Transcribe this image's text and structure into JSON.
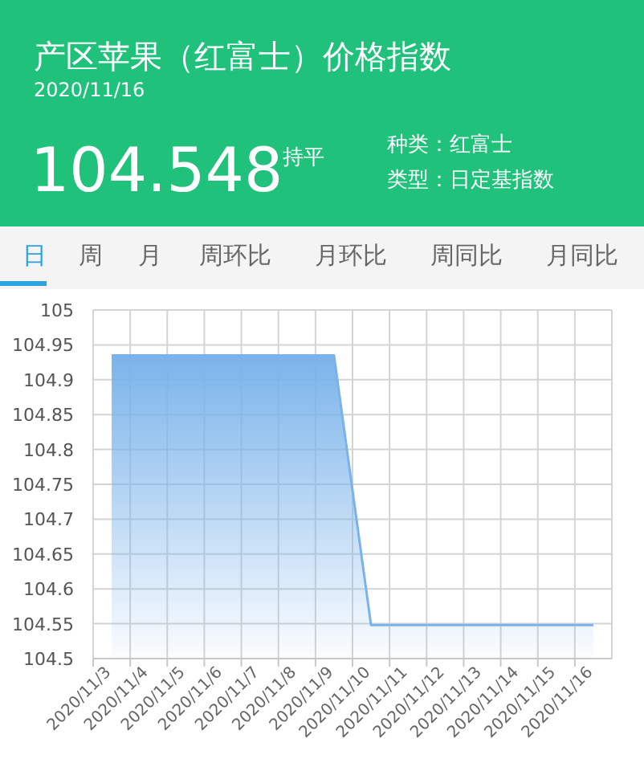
{
  "chart_data": [
    {
      "type": "other",
      "title": "产区苹果（红富士）价格指数",
      "subtitle": "2020/11/16",
      "annotations": [
        "104.548",
        "持平",
        "种类：红富士",
        "类型：日定基指数"
      ]
    },
    {
      "type": "other",
      "annotations": [
        "日",
        "周",
        "月",
        "周环比",
        "月环比",
        "周同比",
        "月同比"
      ]
    },
    {
      "type": "area",
      "categories": [
        "2020/11/3",
        "2020/11/4",
        "2020/11/5",
        "2020/11/6",
        "2020/11/7",
        "2020/11/8",
        "2020/11/9",
        "2020/11/10",
        "2020/11/11",
        "2020/11/12",
        "2020/11/13",
        "2020/11/14",
        "2020/11/15",
        "2020/11/16"
      ],
      "series": [
        {
          "color": "#7ab3ea",
          "values": [
            104.935,
            104.935,
            104.935,
            104.935,
            104.935,
            104.935,
            104.935,
            104.548,
            104.548,
            104.548,
            104.548,
            104.548,
            104.548,
            104.548
          ]
        }
      ],
      "ylim": [
        104.5,
        105
      ],
      "yticks": [
        104.5,
        104.55,
        104.6,
        104.65,
        104.7,
        104.75,
        104.8,
        104.85,
        104.9,
        104.95,
        105
      ],
      "grid": true
    }
  ]
}
